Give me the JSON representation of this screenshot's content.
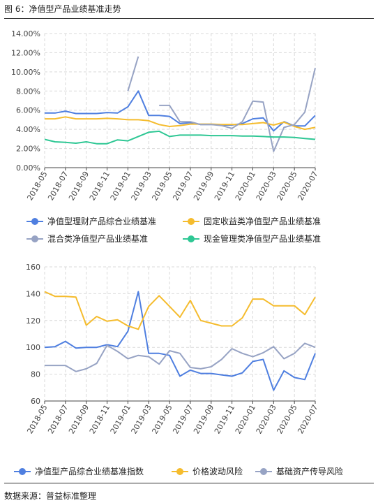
{
  "header": {
    "title": "图 6：净值型产品业绩基准走势"
  },
  "footer": {
    "source": "数据来源：普益标准整理"
  },
  "chart_data": [
    {
      "type": "line",
      "x": [
        "2018-05",
        "2018-06",
        "2018-07",
        "2018-08",
        "2018-09",
        "2018-10",
        "2018-11",
        "2018-12",
        "2019-01",
        "2019-02",
        "2019-03",
        "2019-04",
        "2019-05",
        "2019-06",
        "2019-07",
        "2019-08",
        "2019-09",
        "2019-10",
        "2019-11",
        "2019-12",
        "2020-01",
        "2020-02",
        "2020-03",
        "2020-04",
        "2020-05",
        "2020-06",
        "2020-07"
      ],
      "x_tick_labels": [
        "2018-05",
        "2018-07",
        "2018-09",
        "2018-11",
        "2019-01",
        "2019-03",
        "2019-05",
        "2019-07",
        "2019-09",
        "2019-11",
        "2020-01",
        "2020-03",
        "2020-05",
        "2020-07"
      ],
      "y_tick_labels": [
        "0.00%",
        "2.00%",
        "4.00%",
        "6.00%",
        "8.00%",
        "10.00%",
        "12.00%",
        "14.00%"
      ],
      "ylim": [
        0,
        14
      ],
      "y_unit": "%",
      "grid": true,
      "legend_position": "bottom",
      "series": [
        {
          "name": "净值型理财产品综合业绩基准",
          "color": "#4f7fe0",
          "values": [
            5.7,
            5.7,
            5.9,
            5.65,
            5.65,
            5.65,
            5.75,
            5.7,
            6.35,
            8.0,
            5.45,
            5.45,
            5.35,
            4.6,
            4.7,
            4.5,
            4.5,
            4.45,
            4.45,
            4.6,
            5.1,
            5.2,
            3.85,
            4.8,
            4.35,
            4.35,
            5.45
          ]
        },
        {
          "name": "固定收益类净值型产品业绩基准",
          "color": "#f5bc2e",
          "values": [
            5.1,
            5.1,
            5.3,
            5.1,
            5.1,
            5.1,
            5.15,
            5.1,
            5.0,
            5.0,
            4.9,
            4.5,
            4.3,
            4.4,
            4.55,
            4.55,
            4.55,
            4.5,
            4.5,
            4.5,
            4.6,
            4.7,
            4.45,
            4.75,
            4.3,
            4.0,
            4.2
          ]
        },
        {
          "name": "混合类净值型产品业绩基准",
          "color": "#97a3c4",
          "values": [
            null,
            null,
            null,
            null,
            null,
            null,
            null,
            null,
            8.0,
            11.6,
            null,
            6.5,
            6.5,
            4.8,
            4.8,
            4.5,
            4.5,
            4.4,
            4.1,
            4.8,
            6.95,
            6.85,
            1.7,
            4.2,
            4.5,
            5.8,
            10.4
          ]
        },
        {
          "name": "现金管理类净值型产品业绩基准",
          "color": "#2ec794",
          "values": [
            2.95,
            2.7,
            2.65,
            2.55,
            2.7,
            2.5,
            2.5,
            2.9,
            2.8,
            3.25,
            3.7,
            3.8,
            3.25,
            3.4,
            3.4,
            3.4,
            3.35,
            3.35,
            3.35,
            3.3,
            3.3,
            3.25,
            3.2,
            3.2,
            3.15,
            3.05,
            2.95
          ]
        }
      ]
    },
    {
      "type": "line",
      "x": [
        "2018-05",
        "2018-06",
        "2018-07",
        "2018-08",
        "2018-09",
        "2018-10",
        "2018-11",
        "2018-12",
        "2019-01",
        "2019-02",
        "2019-03",
        "2019-04",
        "2019-05",
        "2019-06",
        "2019-07",
        "2019-08",
        "2019-09",
        "2019-10",
        "2019-11",
        "2019-12",
        "2020-01",
        "2020-02",
        "2020-03",
        "2020-04",
        "2020-05",
        "2020-06",
        "2020-07"
      ],
      "x_tick_labels": [
        "2018-05",
        "2018-07",
        "2018-09",
        "2018-11",
        "2019-01",
        "2019-03",
        "2019-05",
        "2019-07",
        "2019-09",
        "2019-11",
        "2020-01",
        "2020-03",
        "2020-05",
        "2020-07"
      ],
      "y_tick_labels": [
        "60",
        "80",
        "100",
        "120",
        "140",
        "160"
      ],
      "ylim": [
        60,
        160
      ],
      "grid": true,
      "legend_position": "bottom",
      "series": [
        {
          "name": "净值型产品综合业绩基准指数",
          "color": "#4f7fe0",
          "values": [
            100,
            100.5,
            104.5,
            99.5,
            100,
            100,
            102,
            100.5,
            112,
            141.5,
            95.5,
            95.5,
            94,
            78.5,
            83,
            80.5,
            80.5,
            79.5,
            78.5,
            81,
            89.5,
            91,
            68,
            82.5,
            77.5,
            76,
            95.5
          ]
        },
        {
          "name": "价格波动风险",
          "color": "#f5bc2e",
          "values": [
            141.5,
            138,
            138,
            137.5,
            116.5,
            123,
            119.5,
            120.5,
            116,
            113.5,
            130.5,
            138.5,
            130.5,
            122.5,
            135,
            120,
            118,
            116,
            116,
            122,
            136,
            136,
            131,
            131,
            131,
            124.5,
            137.5
          ]
        },
        {
          "name": "基础资产传导风险",
          "color": "#97a3c4",
          "values": [
            86.5,
            86.5,
            86.5,
            82,
            84,
            88,
            101.5,
            97,
            91.5,
            94,
            93,
            87.5,
            97.5,
            95.5,
            85,
            84,
            85.5,
            91,
            99,
            95.5,
            93,
            96,
            100.5,
            91.5,
            95.5,
            103,
            100
          ]
        }
      ]
    }
  ]
}
